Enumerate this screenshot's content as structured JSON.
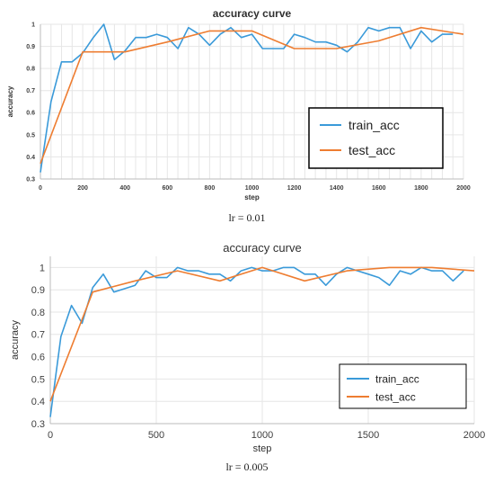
{
  "colors": {
    "train": "#3a9ad9",
    "test": "#ee7d31",
    "grid": "#e6e6e6",
    "axis": "#333333",
    "text": "#404040"
  },
  "chart_data": [
    {
      "type": "line",
      "title": "accuracy curve",
      "xlabel": "step",
      "ylabel": "accuracy",
      "caption": "lr = 0.01",
      "xlim": [
        0,
        2000
      ],
      "ylim": [
        0.3,
        1.0
      ],
      "xticks": [
        0,
        200,
        400,
        600,
        800,
        1000,
        1200,
        1400,
        1600,
        1800,
        2000
      ],
      "yticks": [
        0.3,
        0.4,
        0.5,
        0.6,
        0.7,
        0.8,
        0.9,
        1
      ],
      "grid": true,
      "legend_position": "bottom-right",
      "series": [
        {
          "name": "train_acc",
          "x": [
            0,
            50,
            100,
            150,
            200,
            250,
            300,
            350,
            400,
            450,
            500,
            550,
            600,
            650,
            700,
            750,
            800,
            850,
            900,
            950,
            1000,
            1050,
            1100,
            1150,
            1200,
            1250,
            1300,
            1350,
            1400,
            1450,
            1500,
            1550,
            1600,
            1650,
            1700,
            1750,
            1800,
            1850,
            1900,
            1950
          ],
          "y": [
            0.33,
            0.65,
            0.83,
            0.83,
            0.87,
            0.94,
            1.0,
            0.84,
            0.88,
            0.94,
            0.94,
            0.955,
            0.94,
            0.89,
            0.985,
            0.955,
            0.905,
            0.955,
            0.985,
            0.94,
            0.955,
            0.89,
            0.89,
            0.89,
            0.955,
            0.94,
            0.92,
            0.92,
            0.905,
            0.875,
            0.92,
            0.985,
            0.97,
            0.985,
            0.985,
            0.89,
            0.97,
            0.92,
            0.955,
            0.955
          ]
        },
        {
          "name": "test_acc",
          "x": [
            0,
            200,
            400,
            600,
            800,
            1000,
            1200,
            1400,
            1600,
            1800,
            2000
          ],
          "y": [
            0.37,
            0.875,
            0.875,
            0.92,
            0.97,
            0.97,
            0.89,
            0.89,
            0.925,
            0.985,
            0.955
          ]
        }
      ]
    },
    {
      "type": "line",
      "title": "accuracy curve",
      "xlabel": "step",
      "ylabel": "accuracy",
      "caption": "lr = 0.005",
      "xlim": [
        0,
        2000
      ],
      "ylim": [
        0.3,
        1.05
      ],
      "xticks": [
        0,
        500,
        1000,
        1500,
        2000
      ],
      "yticks": [
        0.3,
        0.4,
        0.5,
        0.6,
        0.7,
        0.8,
        0.9,
        1
      ],
      "grid": true,
      "legend_position": "bottom-right",
      "series": [
        {
          "name": "train_acc",
          "x": [
            0,
            50,
            100,
            150,
            200,
            250,
            300,
            350,
            400,
            450,
            500,
            550,
            600,
            650,
            700,
            750,
            800,
            850,
            900,
            950,
            1000,
            1050,
            1100,
            1150,
            1200,
            1250,
            1300,
            1350,
            1400,
            1450,
            1500,
            1550,
            1600,
            1650,
            1700,
            1750,
            1800,
            1850,
            1900,
            1950
          ],
          "y": [
            0.33,
            0.69,
            0.83,
            0.75,
            0.91,
            0.97,
            0.89,
            0.905,
            0.92,
            0.985,
            0.955,
            0.955,
            1.0,
            0.985,
            0.985,
            0.97,
            0.97,
            0.94,
            0.985,
            1.0,
            0.985,
            0.985,
            1.0,
            1.0,
            0.97,
            0.97,
            0.92,
            0.97,
            1.0,
            0.985,
            0.97,
            0.955,
            0.92,
            0.985,
            0.97,
            1.0,
            0.985,
            0.985,
            0.94,
            0.985
          ]
        },
        {
          "name": "test_acc",
          "x": [
            0,
            200,
            400,
            600,
            800,
            1000,
            1200,
            1400,
            1600,
            1800,
            2000
          ],
          "y": [
            0.4,
            0.89,
            0.94,
            0.985,
            0.94,
            1.0,
            0.94,
            0.985,
            1.0,
            1.0,
            0.985
          ]
        }
      ]
    }
  ]
}
